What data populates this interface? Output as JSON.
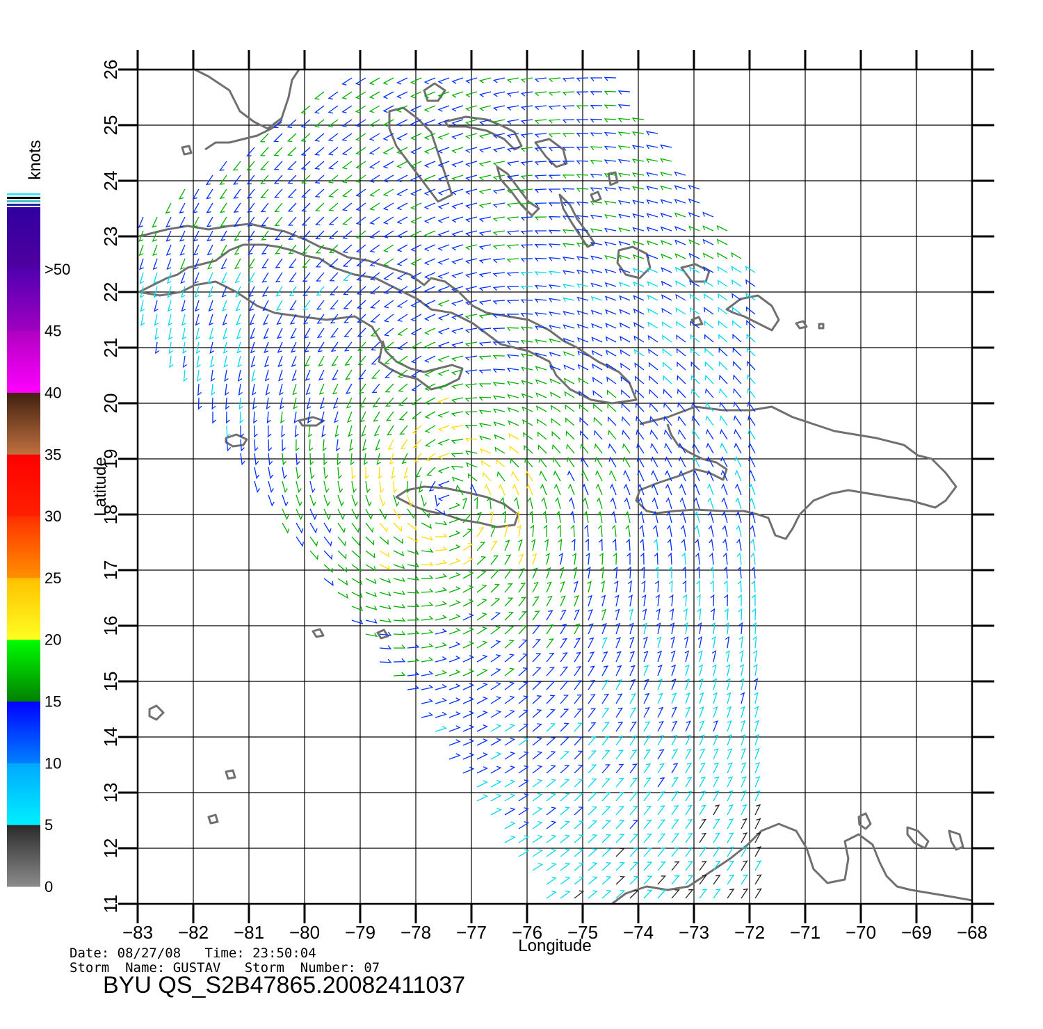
{
  "map": {
    "units_label": "knots",
    "xlabel": "Longitude",
    "ylabel": "Latitude",
    "lon_range": [
      -83,
      -68
    ],
    "lat_range": [
      11,
      26
    ],
    "lon_ticks": [
      "−83",
      "−82",
      "−81",
      "−80",
      "−79",
      "−78",
      "−77",
      "−76",
      "−75",
      "−74",
      "−73",
      "−72",
      "−71",
      "−70",
      "−69",
      "−68"
    ],
    "lat_ticks": [
      "11",
      "12",
      "13",
      "14",
      "15",
      "16",
      "17",
      "18",
      "19",
      "20",
      "21",
      "22",
      "23",
      "24",
      "25",
      "26"
    ],
    "storm_center": {
      "lon": -77.4,
      "lat": 18.3
    }
  },
  "legend": {
    "title": "knots",
    "bins": [
      {
        "label": "0",
        "from": "#8c8c8c",
        "to": "#2a2a2a"
      },
      {
        "label": "5",
        "from": "#00f0ff",
        "to": "#00a8ff"
      },
      {
        "label": "10",
        "from": "#0080ff",
        "to": "#0000ff"
      },
      {
        "label": "15",
        "from": "#008000",
        "to": "#00ff00"
      },
      {
        "label": "20",
        "from": "#ffff20",
        "to": "#ffc000"
      },
      {
        "label": "25",
        "from": "#ff9000",
        "to": "#ff3000"
      },
      {
        "label": "30",
        "from": "#ff2000",
        "to": "#ff0000"
      },
      {
        "label": "35",
        "from": "#c07040",
        "to": "#402010"
      },
      {
        "label": "40",
        "from": "#ff00ff",
        "to": "#b000c0"
      },
      {
        "label": "45",
        "from": "#a000c0",
        "to": "#5000b0"
      },
      {
        "label": ">50",
        "from": "#5000a0",
        "to": "#3000a0"
      }
    ],
    "colors": {
      "0-5": "#222222",
      "5-10": "#00d8f0",
      "10-15": "#0030ff",
      "15-20": "#00b000",
      "20-25": "#ffdd00",
      "25-30": "#ff6000",
      "30-35": "#e00000",
      ">35": "#c000c0"
    }
  },
  "info": {
    "date_label": "Date:",
    "date": "08/27/08",
    "time_label": "Time:",
    "time": "23:50:04",
    "storm_name_label": "Storm  Name:",
    "storm_name": "GUSTAV",
    "storm_number_label": "Storm  Number:",
    "storm_number": "07",
    "product_id": "BYU  QS_S2B47865.20082411037"
  }
}
